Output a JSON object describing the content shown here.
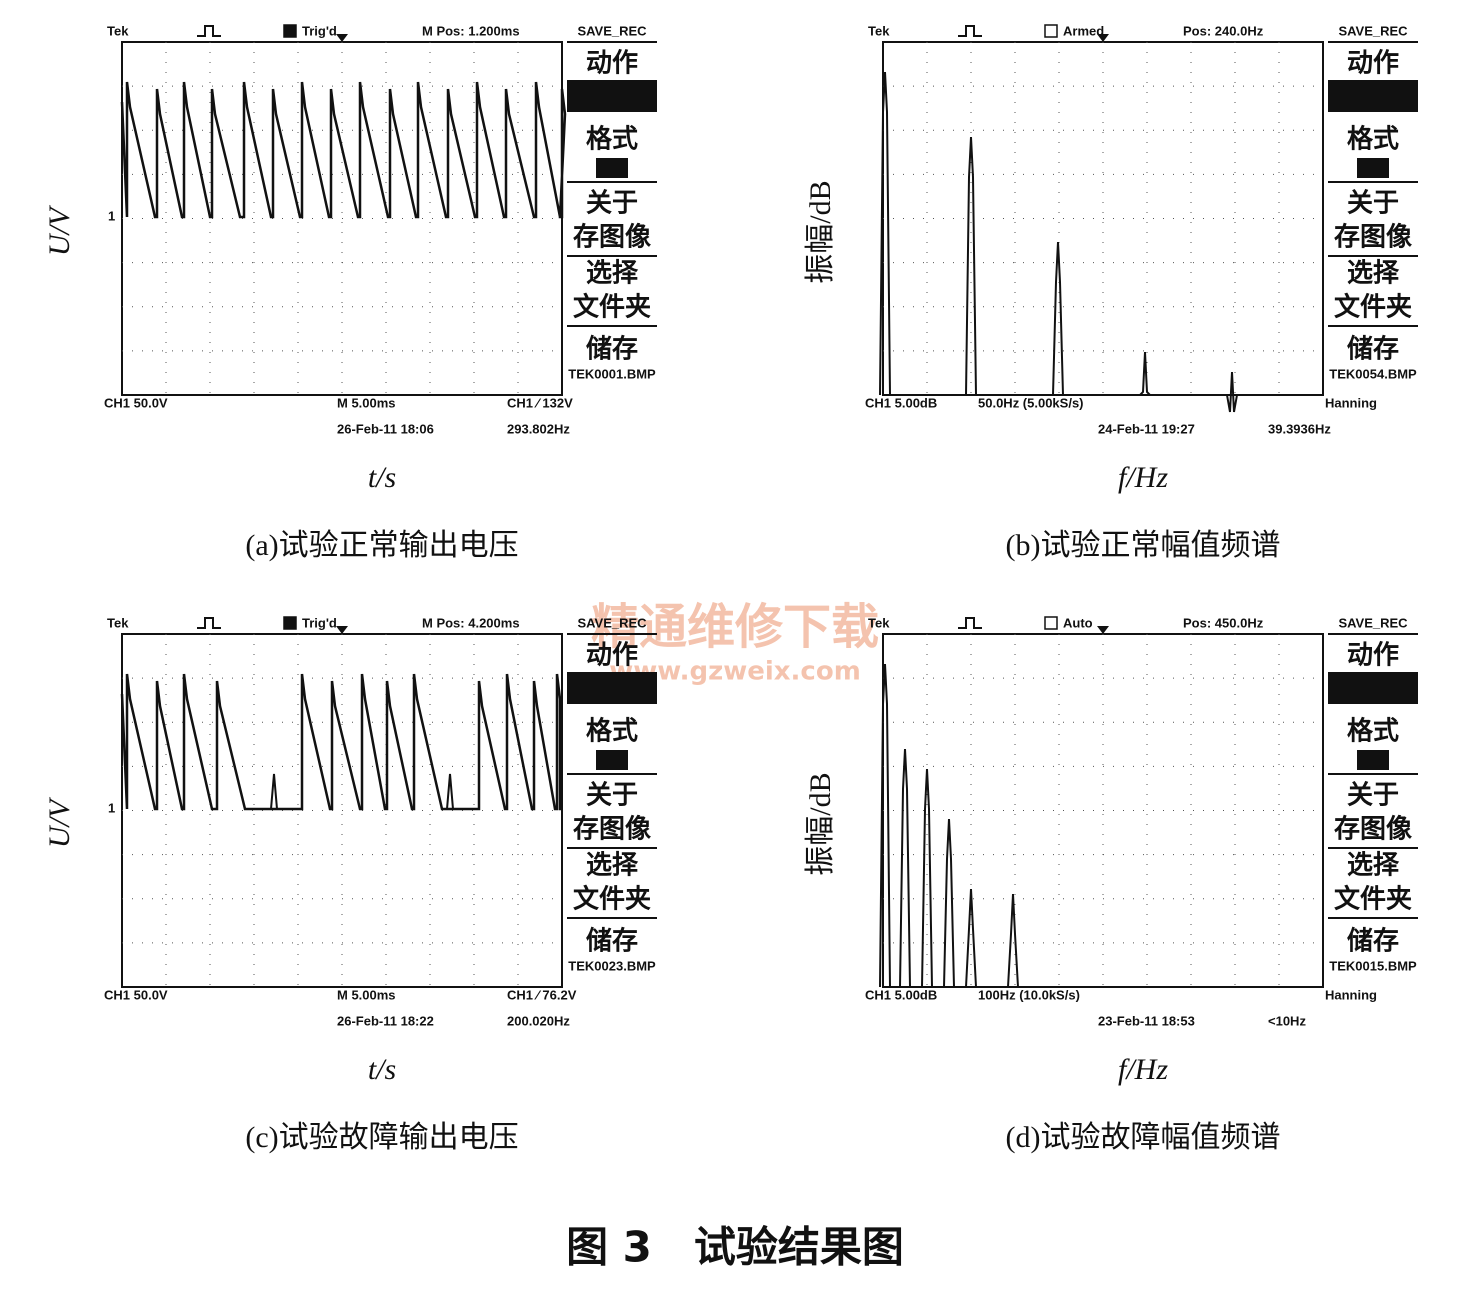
{
  "panels": [
    {
      "brand": "Tek",
      "state": "Trig'd",
      "position": "M Pos: 1.200ms",
      "marker": "1",
      "menu": {
        "title": "SAVE_REC",
        "items": [
          "动作",
          "格式",
          "关于",
          "存图像",
          "选择",
          "文件夹",
          "储存"
        ],
        "file": "TEK0001.BMP"
      },
      "bottom": [
        "CH1  50.0V",
        "M 5.00ms",
        "CH1 ⁄ 132V"
      ],
      "bottom2": [
        "26-Feb-11 18:06",
        "293.802Hz"
      ],
      "y_label": "U/V",
      "x_label": "t/s",
      "caption": "(a)试验正常输出电压"
    },
    {
      "brand": "Tek",
      "state": "Armed",
      "position": "Pos: 240.0Hz",
      "menu": {
        "title": "SAVE_REC",
        "items": [
          "动作",
          "格式",
          "关于",
          "存图像",
          "选择",
          "文件夹",
          "储存"
        ],
        "file": "TEK0054.BMP"
      },
      "bottom": [
        "CH1 5.00dB",
        "50.0Hz (5.00kS/s)",
        "Hanning"
      ],
      "bottom2": [
        "24-Feb-11 19:27",
        "39.3936Hz"
      ],
      "y_label": "振幅/dB",
      "x_label": "f/Hz",
      "caption": "(b)试验正常幅值频谱"
    },
    {
      "brand": "Tek",
      "state": "Trig'd",
      "position": "M Pos: 4.200ms",
      "marker": "1",
      "menu": {
        "title": "SAVE_REC",
        "items": [
          "动作",
          "格式",
          "关于",
          "存图像",
          "选择",
          "文件夹",
          "储存"
        ],
        "file": "TEK0023.BMP"
      },
      "bottom": [
        "CH1  50.0V",
        "M 5.00ms",
        "CH1 ⁄ 76.2V"
      ],
      "bottom2": [
        "26-Feb-11 18:22",
        "200.020Hz"
      ],
      "y_label": "U/V",
      "x_label": "t/s",
      "caption": "(c)试验故障输出电压"
    },
    {
      "brand": "Tek",
      "state": "Auto",
      "position": "Pos: 450.0Hz",
      "menu": {
        "title": "SAVE_REC",
        "items": [
          "动作",
          "格式",
          "关于",
          "存图像",
          "选择",
          "文件夹",
          "储存"
        ],
        "file": "TEK0015.BMP"
      },
      "bottom": [
        "CH1 5.00dB",
        "100Hz (10.0kS/s)",
        "Hanning"
      ],
      "bottom2": [
        "23-Feb-11 18:53",
        "<10Hz"
      ],
      "y_label": "振幅/dB",
      "x_label": "f/Hz",
      "caption": "(d)试验故障幅值频谱"
    }
  ],
  "watermark": {
    "title": "精通维修下载",
    "url": "www.gzweix.com"
  },
  "figure_title": "图 3　试验结果图"
}
